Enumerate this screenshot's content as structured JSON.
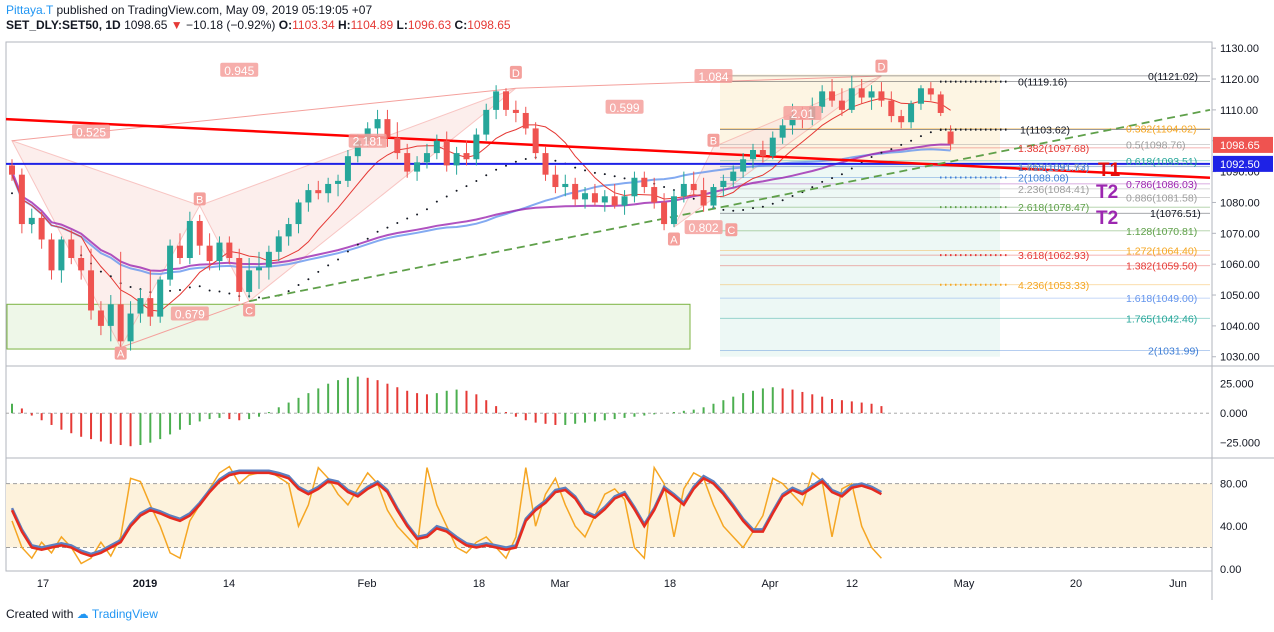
{
  "header": {
    "author": "Pittaya.T",
    "published": "published on TradingView.com, May 09, 2019 05:19:05 +07",
    "symbol": "SET_DLY:SET50, 1D",
    "last": "1098.65",
    "change": "−10.18 (−0.92%)",
    "o_label": "O:",
    "o": "1103.34",
    "h_label": "H:",
    "h": "1104.89",
    "l_label": "L:",
    "l": "1096.63",
    "c_label": "C:",
    "c": "1098.65"
  },
  "footer": {
    "created_with": "Created with",
    "brand": "TradingView"
  },
  "colors": {
    "up": "#26a69a",
    "down": "#ef5350",
    "trend_red": "#ff0000",
    "blue_line": "#1e22e6",
    "ma_blue": "#6495ed",
    "ma_purple": "#9c27b0",
    "green_dash": "#5fa04a",
    "pattern": "#f4a09c",
    "histo_up": "#4caf50",
    "histo_down": "#e53935",
    "stoch_orange": "#f5a623",
    "stoch_red": "#e52b20",
    "stoch_blue": "#5b7fc0"
  },
  "chart_data": {
    "type": "candlestick",
    "y_axis": {
      "range": [
        1027,
        1132
      ],
      "ticks": [
        "1130.00",
        "1120.00",
        "1110.00",
        "1100.00",
        "1090.00",
        "1080.00",
        "1070.00",
        "1060.00",
        "1050.00",
        "1040.00",
        "1030.00"
      ]
    },
    "x_axis": {
      "labels": [
        "17",
        "2019",
        "14",
        "Feb",
        "18",
        "Mar",
        "18",
        "Apr",
        "12",
        "May",
        "20",
        "Jun"
      ]
    },
    "candles": [
      [
        1092,
        1094,
        1087,
        1089
      ],
      [
        1089,
        1091,
        1070,
        1073
      ],
      [
        1073,
        1078,
        1070,
        1075
      ],
      [
        1075,
        1077,
        1065,
        1068
      ],
      [
        1068,
        1070,
        1055,
        1058
      ],
      [
        1058,
        1069,
        1054,
        1068
      ],
      [
        1068,
        1071,
        1060,
        1062
      ],
      [
        1062,
        1066,
        1055,
        1058
      ],
      [
        1058,
        1065,
        1042,
        1045
      ],
      [
        1045,
        1048,
        1037,
        1040
      ],
      [
        1040,
        1050,
        1035,
        1047
      ],
      [
        1047,
        1064,
        1033,
        1035
      ],
      [
        1035,
        1048,
        1032,
        1044
      ],
      [
        1044,
        1052,
        1041,
        1049
      ],
      [
        1049,
        1058,
        1040,
        1043
      ],
      [
        1043,
        1056,
        1041,
        1055
      ],
      [
        1055,
        1068,
        1053,
        1066
      ],
      [
        1066,
        1070,
        1060,
        1062
      ],
      [
        1062,
        1077,
        1060,
        1074
      ],
      [
        1074,
        1076,
        1063,
        1066
      ],
      [
        1066,
        1070,
        1058,
        1061
      ],
      [
        1061,
        1069,
        1058,
        1067
      ],
      [
        1067,
        1069,
        1060,
        1062
      ],
      [
        1062,
        1065,
        1048,
        1051
      ],
      [
        1051,
        1062,
        1049,
        1058
      ],
      [
        1058,
        1064,
        1052,
        1059
      ],
      [
        1059,
        1066,
        1055,
        1064
      ],
      [
        1064,
        1071,
        1061,
        1069
      ],
      [
        1069,
        1075,
        1066,
        1073
      ],
      [
        1073,
        1081,
        1070,
        1080
      ],
      [
        1080,
        1086,
        1077,
        1084
      ],
      [
        1084,
        1087,
        1081,
        1083
      ],
      [
        1083,
        1088,
        1080,
        1086
      ],
      [
        1086,
        1089,
        1082,
        1087
      ],
      [
        1087,
        1097,
        1085,
        1095
      ],
      [
        1095,
        1102,
        1093,
        1100
      ],
      [
        1100,
        1106,
        1098,
        1104
      ],
      [
        1104,
        1110,
        1101,
        1107
      ],
      [
        1107,
        1110,
        1098,
        1101
      ],
      [
        1101,
        1106,
        1094,
        1096
      ],
      [
        1096,
        1099,
        1088,
        1090
      ],
      [
        1090,
        1095,
        1087,
        1093
      ],
      [
        1093,
        1099,
        1091,
        1096
      ],
      [
        1096,
        1102,
        1094,
        1100
      ],
      [
        1100,
        1103,
        1090,
        1092
      ],
      [
        1092,
        1098,
        1089,
        1096
      ],
      [
        1096,
        1100,
        1092,
        1094
      ],
      [
        1094,
        1104,
        1092,
        1102
      ],
      [
        1102,
        1112,
        1100,
        1110
      ],
      [
        1110,
        1118,
        1107,
        1116
      ],
      [
        1116,
        1117,
        1108,
        1110
      ],
      [
        1110,
        1113,
        1106,
        1109
      ],
      [
        1109,
        1111,
        1102,
        1104
      ],
      [
        1104,
        1106,
        1094,
        1096
      ],
      [
        1096,
        1098,
        1087,
        1089
      ],
      [
        1089,
        1092,
        1083,
        1085
      ],
      [
        1085,
        1089,
        1082,
        1086
      ],
      [
        1086,
        1088,
        1079,
        1081
      ],
      [
        1081,
        1085,
        1078,
        1083
      ],
      [
        1083,
        1086,
        1079,
        1080
      ],
      [
        1080,
        1084,
        1077,
        1082
      ],
      [
        1082,
        1086,
        1078,
        1079
      ],
      [
        1079,
        1084,
        1076,
        1082
      ],
      [
        1082,
        1090,
        1080,
        1088
      ],
      [
        1088,
        1090,
        1083,
        1085
      ],
      [
        1085,
        1088,
        1078,
        1080
      ],
      [
        1080,
        1083,
        1071,
        1073
      ],
      [
        1073,
        1084,
        1072,
        1082
      ],
      [
        1082,
        1090,
        1080,
        1086
      ],
      [
        1086,
        1090,
        1082,
        1084
      ],
      [
        1084,
        1088,
        1077,
        1079
      ],
      [
        1079,
        1086,
        1078,
        1085
      ],
      [
        1085,
        1089,
        1082,
        1087
      ],
      [
        1087,
        1092,
        1085,
        1090
      ],
      [
        1090,
        1096,
        1088,
        1094
      ],
      [
        1094,
        1099,
        1091,
        1097
      ],
      [
        1097,
        1100,
        1093,
        1095
      ],
      [
        1095,
        1103,
        1094,
        1101
      ],
      [
        1101,
        1107,
        1099,
        1105
      ],
      [
        1105,
        1112,
        1102,
        1108
      ],
      [
        1108,
        1111,
        1104,
        1107
      ],
      [
        1107,
        1114,
        1105,
        1111
      ],
      [
        1111,
        1118,
        1109,
        1116
      ],
      [
        1116,
        1120,
        1111,
        1113
      ],
      [
        1113,
        1117,
        1108,
        1110
      ],
      [
        1110,
        1121,
        1109,
        1117
      ],
      [
        1117,
        1120,
        1112,
        1114
      ],
      [
        1114,
        1118,
        1110,
        1116
      ],
      [
        1116,
        1119,
        1111,
        1113
      ],
      [
        1113,
        1116,
        1106,
        1108
      ],
      [
        1108,
        1110,
        1104,
        1106
      ],
      [
        1106,
        1113,
        1104,
        1112
      ],
      [
        1112,
        1118,
        1110,
        1117
      ],
      [
        1117,
        1119,
        1113,
        1115
      ],
      [
        1115,
        1116,
        1108,
        1109
      ],
      [
        1103,
        1105,
        1097,
        1099
      ]
    ],
    "price_levels": [
      {
        "label": "0(1119.16)",
        "value": 1119.16,
        "color": "#131722"
      },
      {
        "label": "0(1121.02)",
        "value": 1121.02,
        "color": "#131722"
      },
      {
        "label": "1(1103.62)",
        "value": 1103.62,
        "color": "#131722"
      },
      {
        "label": "0.382(1104.02)",
        "value": 1104.02,
        "color": "#f5a623"
      },
      {
        "label": "0.5(1098.76)",
        "value": 1098.76,
        "color": "#9e9e9e"
      },
      {
        "label": "1.382(1097.68)",
        "value": 1097.68,
        "color": "#e53935"
      },
      {
        "label": "0.618(1093.51)",
        "value": 1093.51,
        "color": "#26a69a"
      },
      {
        "label": "1.618(1091.57)",
        "value": 1091.57,
        "color": "#9e9e9e"
      },
      {
        "label": "1.765(1091.73)",
        "value": 1091.73,
        "color": "#3f7fd6"
      },
      {
        "label": "2(1088.08)",
        "value": 1088.08,
        "color": "#3f7fd6"
      },
      {
        "label": "0.786(1086.03)",
        "value": 1086.03,
        "color": "#9c27b0"
      },
      {
        "label": "2.236(1084.41)",
        "value": 1084.41,
        "color": "#9e9e9e"
      },
      {
        "label": "0.886(1081.58)",
        "value": 1081.58,
        "color": "#9e9e9e"
      },
      {
        "label": "2.618(1078.47)",
        "value": 1078.47,
        "color": "#5fa04a"
      },
      {
        "label": "1(1076.51)",
        "value": 1076.51,
        "color": "#131722"
      },
      {
        "label": "1.128(1070.81)",
        "value": 1070.81,
        "color": "#5fa04a"
      },
      {
        "label": "1.272(1064.40)",
        "value": 1064.4,
        "color": "#f5a623"
      },
      {
        "label": "3.618(1062.93)",
        "value": 1062.93,
        "color": "#e53935"
      },
      {
        "label": "1.382(1059.50)",
        "value": 1059.5,
        "color": "#e53935"
      },
      {
        "label": "4.236(1053.33)",
        "value": 1053.33,
        "color": "#f5a623"
      },
      {
        "label": "1.618(1049.00)",
        "value": 1049.0,
        "color": "#6495ed"
      },
      {
        "label": "1.765(1042.46)",
        "value": 1042.46,
        "color": "#26a69a"
      },
      {
        "label": "2(1031.99)",
        "value": 1031.99,
        "color": "#3f7fd6"
      }
    ],
    "price_tags": [
      {
        "label": "1098.65",
        "value": 1098.65,
        "bg": "#ef5350"
      },
      {
        "label": "1092.50",
        "value": 1092.5,
        "bg": "#1e22e6"
      }
    ],
    "targets": [
      {
        "label": "T1",
        "value": 1092.5,
        "color": "#e01010"
      },
      {
        "label": "T2",
        "value": 1084.5,
        "color": "#9c27b0"
      },
      {
        "label": "T2",
        "value": 1076,
        "color": "#9c27b0"
      }
    ],
    "pattern_labels": [
      "A",
      "B",
      "C",
      "D",
      "A",
      "B",
      "C",
      "D"
    ],
    "ratio_labels": [
      "0.945",
      "0.525",
      "0.679",
      "2.181",
      "0.599",
      "1.084",
      "2.01",
      "0.802"
    ],
    "histogram": {
      "ticks": [
        "25.000",
        "0.000",
        "−25.000"
      ],
      "range": [
        -38,
        40
      ],
      "values": [
        8,
        4,
        -2,
        -6,
        -10,
        -14,
        -17,
        -20,
        -22,
        -24,
        -26,
        -27,
        -28,
        -27,
        -25,
        -22,
        -18,
        -14,
        -10,
        -7,
        -5,
        -4,
        -5,
        -6,
        -5,
        -3,
        1,
        5,
        9,
        13,
        17,
        21,
        25,
        28,
        30,
        31,
        30,
        28,
        25,
        22,
        19,
        17,
        16,
        17,
        19,
        20,
        19,
        16,
        11,
        6,
        1,
        -3,
        -6,
        -8,
        -9,
        -10,
        -10,
        -9,
        -8,
        -7,
        -6,
        -5,
        -4,
        -3,
        -2,
        -1,
        0,
        1,
        2,
        3,
        5,
        8,
        11,
        14,
        17,
        19,
        21,
        22,
        21,
        20,
        18,
        16,
        14,
        12,
        11,
        10,
        9,
        8,
        6
      ]
    },
    "stochastic": {
      "ticks": [
        "80.00",
        "40.00",
        "0.00"
      ],
      "range": [
        -2,
        104
      ],
      "bands": [
        20,
        80
      ],
      "k": [
        45,
        20,
        10,
        25,
        15,
        30,
        20,
        5,
        10,
        25,
        12,
        30,
        85,
        82,
        60,
        40,
        15,
        10,
        45,
        60,
        75,
        90,
        96,
        80,
        88,
        90,
        92,
        86,
        80,
        40,
        60,
        95,
        85,
        70,
        60,
        75,
        90,
        80,
        55,
        40,
        30,
        20,
        95,
        60,
        40,
        20,
        15,
        25,
        30,
        20,
        10,
        30,
        95,
        40,
        70,
        85,
        60,
        40,
        30,
        50,
        70,
        75,
        65,
        20,
        10,
        95,
        80,
        30,
        75,
        90,
        85,
        60,
        40,
        30,
        20,
        35,
        50,
        85,
        80,
        70,
        60,
        90,
        82,
        30,
        75,
        80,
        40,
        20,
        10
      ],
      "d": [
        55,
        35,
        20,
        18,
        20,
        22,
        20,
        15,
        12,
        15,
        20,
        25,
        40,
        50,
        55,
        52,
        48,
        45,
        50,
        60,
        72,
        82,
        88,
        90,
        90,
        90,
        90,
        88,
        85,
        75,
        70,
        75,
        82,
        80,
        72,
        68,
        75,
        80,
        72,
        55,
        40,
        28,
        30,
        38,
        35,
        28,
        22,
        20,
        22,
        20,
        18,
        20,
        45,
        55,
        62,
        72,
        74,
        66,
        52,
        48,
        56,
        66,
        70,
        56,
        40,
        55,
        75,
        68,
        60,
        75,
        85,
        80,
        70,
        58,
        45,
        35,
        35,
        52,
        68,
        74,
        70,
        76,
        82,
        72,
        68,
        76,
        78,
        75,
        70
      ]
    }
  }
}
